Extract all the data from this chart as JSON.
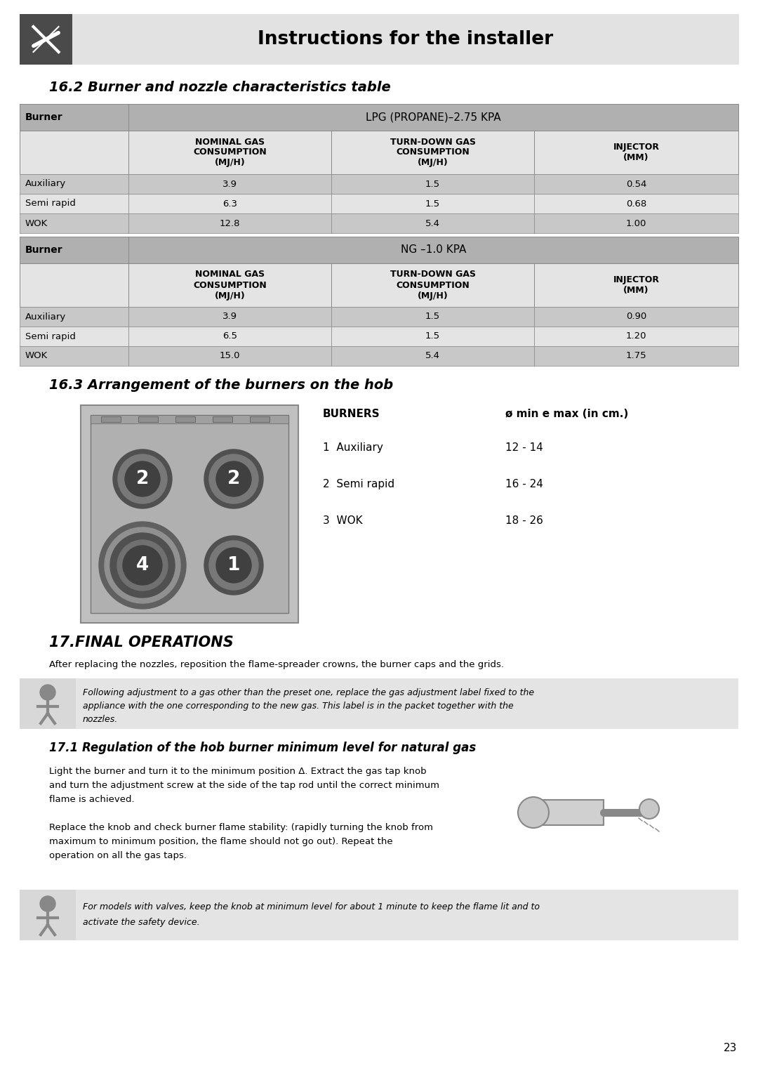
{
  "page_title": "Instructions for the installer",
  "section_16_2_title": "16.2 Burner and nozzle characteristics table",
  "section_16_3_title": "16.3 Arrangement of the burners on the hob",
  "section_17_title": "17.FINAL OPERATIONS",
  "section_17_1_title": "17.1 Regulation of the hob burner minimum level for natural gas",
  "lpg_header": "LPG (PROPANE)–2.75 KPA",
  "ng_header": "NG –1.0 KPA",
  "col_headers": [
    "NOMINAL GAS\nCONSUMPTION\n(MJ/H)",
    "TURN-DOWN GAS\nCONSUMPTION\n(MJ/H)",
    "INJECTOR\n(MM)"
  ],
  "burner_label": "Burner",
  "lpg_rows": [
    [
      "Auxiliary",
      "3.9",
      "1.5",
      "0.54"
    ],
    [
      "Semi rapid",
      "6.3",
      "1.5",
      "0.68"
    ],
    [
      "WOK",
      "12.8",
      "5.4",
      "1.00"
    ]
  ],
  "ng_rows": [
    [
      "Auxiliary",
      "3.9",
      "1.5",
      "0.90"
    ],
    [
      "Semi rapid",
      "6.5",
      "1.5",
      "1.20"
    ],
    [
      "WOK",
      "15.0",
      "5.4",
      "1.75"
    ]
  ],
  "burners_legend": [
    {
      "num": "1",
      "name": "Auxiliary",
      "range": "12 - 14"
    },
    {
      "num": "2",
      "name": "Semi rapid",
      "range": "16 - 24"
    },
    {
      "num": "3",
      "name": "WOK",
      "range": "18 - 26"
    }
  ],
  "text_final_ops": "After replacing the nozzles, reposition the flame-spreader crowns, the burner caps and the grids.",
  "text_note_lines": [
    "Following adjustment to a gas other than the preset one, replace the gas adjustment label fixed to the",
    "appliance with the one corresponding to the new gas. This label is in the packet together with the",
    "nozzles."
  ],
  "text_17_1_para1": "Light the burner and turn it to the minimum position Δ. Extract the gas tap knob",
  "text_17_1_para1b": "and turn the adjustment screw at the side of the tap rod until the correct minimum",
  "text_17_1_para1c": "flame is achieved.",
  "text_17_1_para2": "Replace the knob and check burner flame stability: (rapidly turning the knob from",
  "text_17_1_para2b": "maximum to minimum position, the flame should not go out). Repeat the",
  "text_17_1_para2c": "operation on all the gas taps.",
  "text_valve_lines": [
    "For models with valves, keep the knob at minimum level for about 1 minute to keep the flame lit and to",
    "activate the safety device."
  ],
  "page_number": "23"
}
